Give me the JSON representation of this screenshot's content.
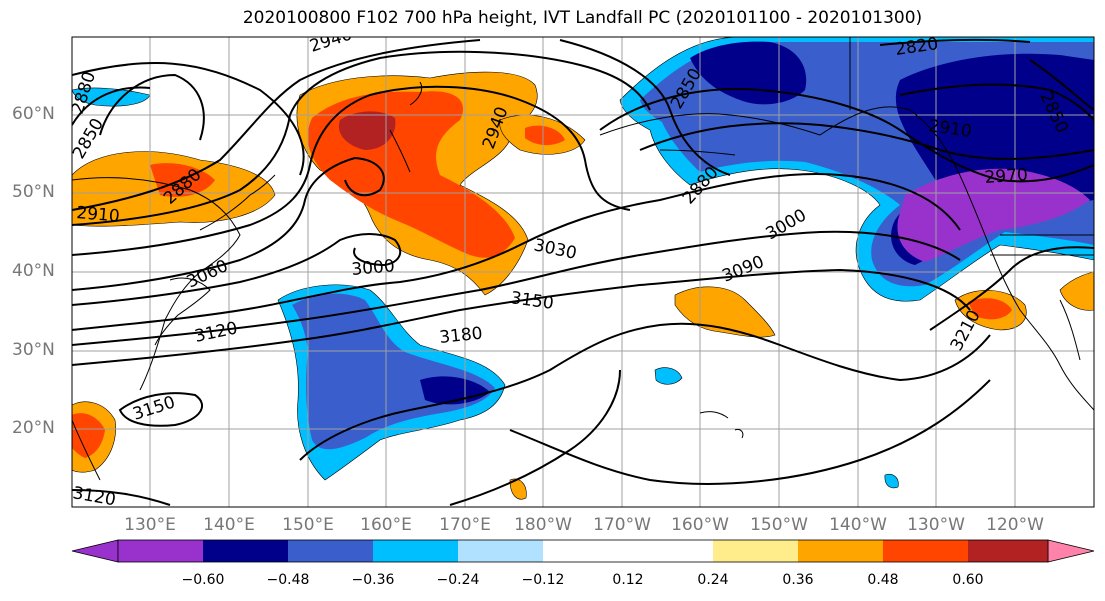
{
  "title": "2020100800 F102 700 hPa height, IVT Landfall PC (2020101100 - 2020101300)",
  "map": {
    "lat_labels": [
      "60°N",
      "50°N",
      "40°N",
      "30°N",
      "20°N"
    ],
    "lon_labels": [
      "130°E",
      "140°E",
      "150°E",
      "160°E",
      "170°E",
      "180°W",
      "170°W",
      "160°W",
      "150°W",
      "140°W",
      "130°W",
      "120°W"
    ],
    "contour_labels": [
      "2940",
      "2880",
      "2850",
      "2910",
      "2880",
      "3060",
      "3120",
      "3150",
      "3000",
      "3030",
      "2940",
      "2850",
      "2880",
      "3000",
      "3090",
      "3150",
      "3180",
      "2820",
      "2910",
      "2970",
      "2850",
      "3210",
      "3120"
    ],
    "contour_color": "#000000",
    "coastline_color": "#000000",
    "grid_color": "#a0a0a0"
  },
  "colorbar": {
    "colors": [
      "#9932CC",
      "#00008B",
      "#3A5FCD",
      "#00BFFF",
      "#B0E2FF",
      "#FFFFFF",
      "#FFFFFF",
      "#FFEC8B",
      "#FFA500",
      "#FF4500",
      "#B22222",
      "#FF82AB"
    ],
    "tick_labels": [
      "−0.60",
      "−0.48",
      "−0.36",
      "−0.24",
      "−0.12",
      "0.12",
      "0.24",
      "0.36",
      "0.48",
      "0.60"
    ]
  }
}
